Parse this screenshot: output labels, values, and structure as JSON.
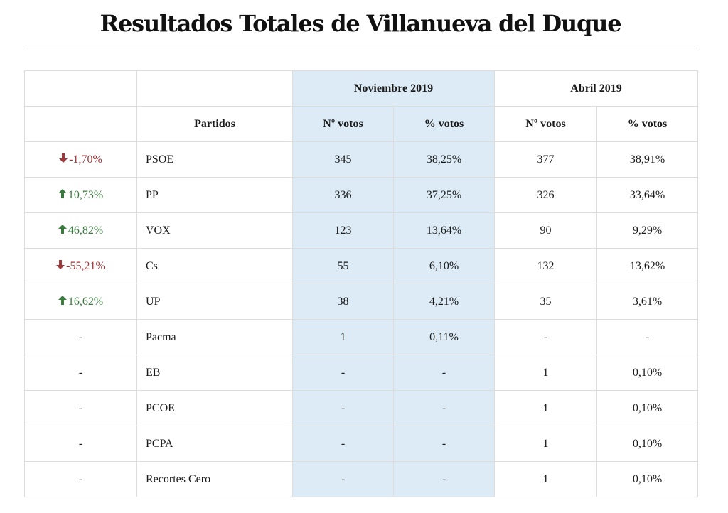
{
  "title": "Resultados Totales de Villanueva del Duque",
  "headers": {
    "partidos": "Partidos",
    "nov": "Noviembre 2019",
    "abr": "Abril 2019",
    "votos": "Nº votos",
    "pct": "% votos"
  },
  "colors": {
    "highlight": "#dcebf5",
    "up": "#3a7a3e",
    "down": "#a0373a"
  },
  "rows": [
    {
      "change": "-1,70%",
      "dir": "down",
      "party": "PSOE",
      "nov_votes": "345",
      "nov_pct": "38,25%",
      "abr_votes": "377",
      "abr_pct": "38,91%"
    },
    {
      "change": "10,73%",
      "dir": "up",
      "party": "PP",
      "nov_votes": "336",
      "nov_pct": "37,25%",
      "abr_votes": "326",
      "abr_pct": "33,64%"
    },
    {
      "change": "46,82%",
      "dir": "up",
      "party": "VOX",
      "nov_votes": "123",
      "nov_pct": "13,64%",
      "abr_votes": "90",
      "abr_pct": "9,29%"
    },
    {
      "change": "-55,21%",
      "dir": "down",
      "party": "Cs",
      "nov_votes": "55",
      "nov_pct": "6,10%",
      "abr_votes": "132",
      "abr_pct": "13,62%"
    },
    {
      "change": "16,62%",
      "dir": "up",
      "party": "UP",
      "nov_votes": "38",
      "nov_pct": "4,21%",
      "abr_votes": "35",
      "abr_pct": "3,61%"
    },
    {
      "change": "-",
      "dir": "none",
      "party": "Pacma",
      "nov_votes": "1",
      "nov_pct": "0,11%",
      "abr_votes": "-",
      "abr_pct": "-"
    },
    {
      "change": "-",
      "dir": "none",
      "party": "EB",
      "nov_votes": "-",
      "nov_pct": "-",
      "abr_votes": "1",
      "abr_pct": "0,10%"
    },
    {
      "change": "-",
      "dir": "none",
      "party": "PCOE",
      "nov_votes": "-",
      "nov_pct": "-",
      "abr_votes": "1",
      "abr_pct": "0,10%"
    },
    {
      "change": "-",
      "dir": "none",
      "party": "PCPA",
      "nov_votes": "-",
      "nov_pct": "-",
      "abr_votes": "1",
      "abr_pct": "0,10%"
    },
    {
      "change": "-",
      "dir": "none",
      "party": "Recortes Cero",
      "nov_votes": "-",
      "nov_pct": "-",
      "abr_votes": "1",
      "abr_pct": "0,10%"
    }
  ]
}
